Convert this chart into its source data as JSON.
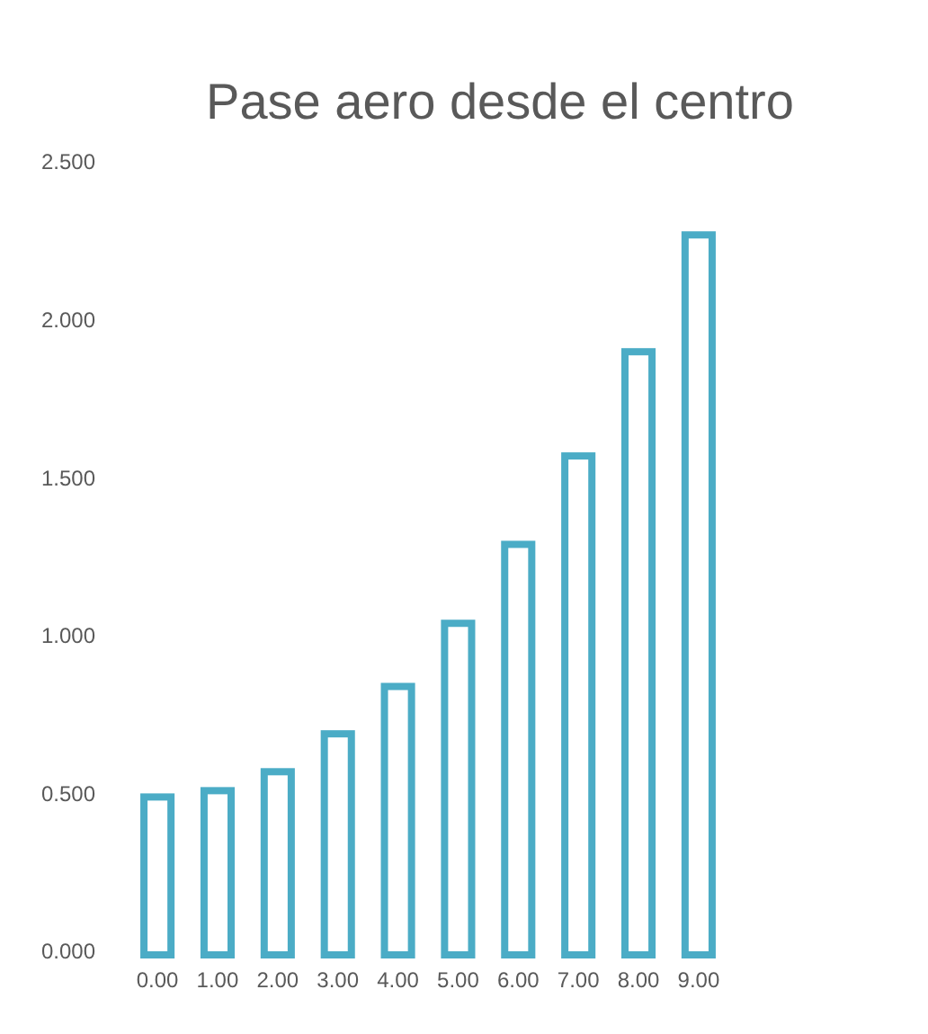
{
  "chart_data": {
    "type": "bar",
    "title": "Pase aero desde el centro",
    "categories": [
      "0.00",
      "1.00",
      "2.00",
      "3.00",
      "4.00",
      "5.00",
      "6.00",
      "7.00",
      "8.00",
      "9.00"
    ],
    "values": [
      0.5,
      0.52,
      0.58,
      0.7,
      0.85,
      1.05,
      1.3,
      1.58,
      1.91,
      2.28
    ],
    "color": "#4bacc6",
    "ylim": [
      0,
      2.5
    ],
    "yticks": [
      {
        "value": 0,
        "label": "0.000"
      },
      {
        "value": 0.5,
        "label": "0.500"
      },
      {
        "value": 1,
        "label": "1.000"
      },
      {
        "value": 1.5,
        "label": "1.500"
      },
      {
        "value": 2,
        "label": "2.000"
      },
      {
        "value": 2.5,
        "label": "2.500"
      }
    ],
    "grid": false,
    "legend": false
  }
}
